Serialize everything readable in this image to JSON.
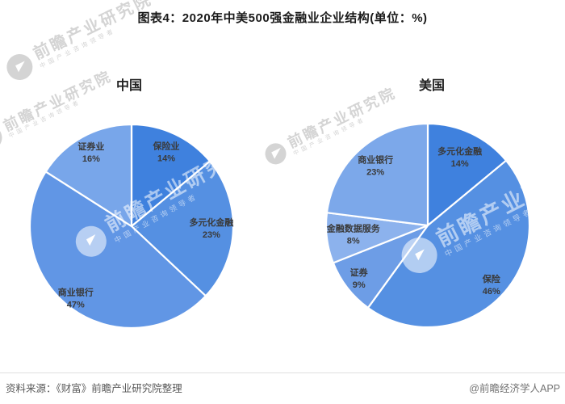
{
  "page": {
    "title": "图表4：2020年中美500强金融业企业结构(单位：%)",
    "source": "资料来源：《财富》前瞻产业研究院整理",
    "credit": "@前瞻经济学人APP"
  },
  "watermark": {
    "text": "前瞻产业研究院",
    "subtext": "中国产业咨询领导者"
  },
  "chart_data": [
    {
      "type": "pie",
      "title": "中国",
      "unit": "%",
      "start_angle_deg": 0,
      "direction": "clockwise",
      "legend": "none",
      "slices": [
        {
          "label": "保险业",
          "value": 14,
          "color": "#3f81de"
        },
        {
          "label": "多元化金融",
          "value": 23,
          "color": "#5590e2"
        },
        {
          "label": "商业银行",
          "value": 47,
          "color": "#6196e5"
        },
        {
          "label": "证券业",
          "value": 16,
          "color": "#78a6ea"
        }
      ]
    },
    {
      "type": "pie",
      "title": "美国",
      "unit": "%",
      "start_angle_deg": 0,
      "direction": "clockwise",
      "legend": "none",
      "slices": [
        {
          "label": "多元化金融",
          "value": 14,
          "color": "#3f81de"
        },
        {
          "label": "保险",
          "value": 46,
          "color": "#5590e2"
        },
        {
          "label": "证券",
          "value": 9,
          "color": "#6d9de6"
        },
        {
          "label": "金融数据服务",
          "value": 8,
          "color": "#8cb2ed"
        },
        {
          "label": "商业银行",
          "value": 23,
          "color": "#7ca8ea"
        }
      ]
    }
  ]
}
